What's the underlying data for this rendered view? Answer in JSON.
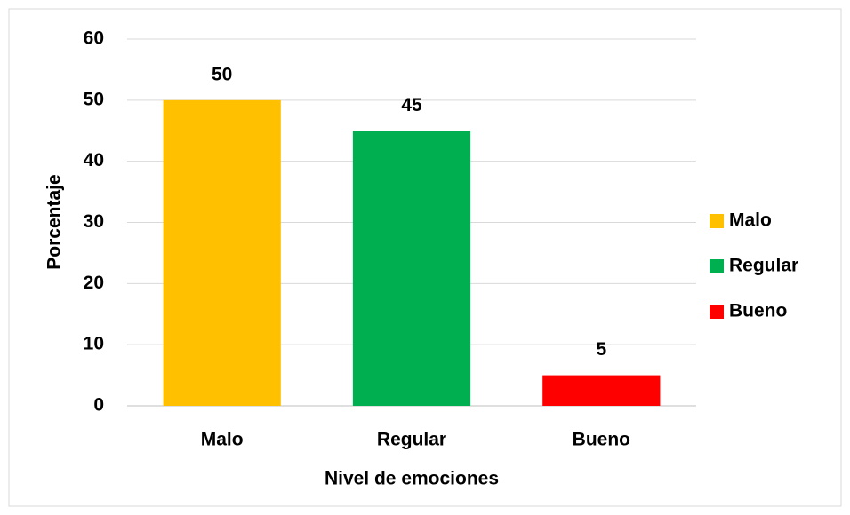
{
  "chart_data": {
    "type": "bar",
    "xlabel": "Nivel de emociones",
    "ylabel": "Porcentaje",
    "categories": [
      "Malo",
      "Regular",
      "Bueno"
    ],
    "series": [
      {
        "name": "Malo",
        "color": "#ffc000",
        "values": [
          50,
          null,
          null
        ]
      },
      {
        "name": "Regular",
        "color": "#00b050",
        "values": [
          null,
          45,
          null
        ]
      },
      {
        "name": "Bueno",
        "color": "#ff0000",
        "values": [
          null,
          null,
          5
        ]
      }
    ],
    "ylim": [
      0,
      60
    ],
    "yticks": [
      0,
      10,
      20,
      30,
      40,
      50,
      60
    ],
    "grid": true,
    "legend": "right"
  }
}
